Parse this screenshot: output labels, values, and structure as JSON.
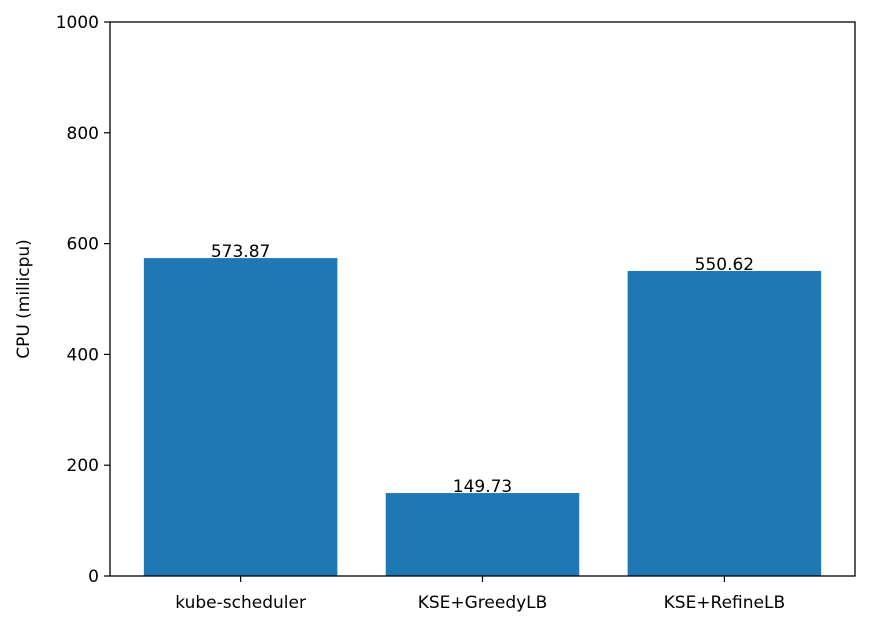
{
  "chart_data": {
    "type": "bar",
    "title": "",
    "xlabel": "",
    "ylabel": "CPU (millicpu)",
    "ylim": [
      0,
      1000
    ],
    "yticks": [
      0,
      200,
      400,
      600,
      800,
      1000
    ],
    "categories": [
      "kube-scheduler",
      "KSE+GreedyLB",
      "KSE+RefineLB"
    ],
    "values": [
      573.87,
      149.73,
      550.62
    ],
    "value_labels": [
      "573.87",
      "149.73",
      "550.62"
    ],
    "bar_color": "#1f77b4",
    "grid": false,
    "legend": "none"
  }
}
